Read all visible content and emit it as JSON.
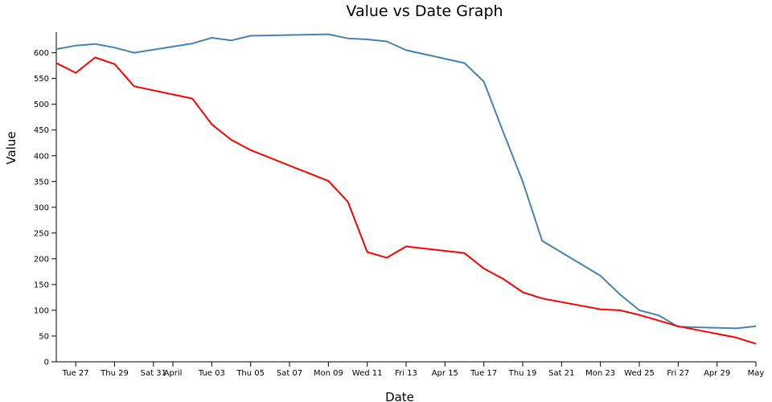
{
  "chart_data": {
    "type": "line",
    "title": "Value vs Date Graph",
    "xlabel": "Date",
    "ylabel": "Value",
    "xlim": [
      "2018-03-26",
      "2018-05-01"
    ],
    "ylim": [
      0,
      640
    ],
    "y_ticks": [
      0,
      50,
      100,
      150,
      200,
      250,
      300,
      350,
      400,
      450,
      500,
      550,
      600
    ],
    "x_ticks": [
      {
        "date": "2018-03-27",
        "label": "Tue 27"
      },
      {
        "date": "2018-03-29",
        "label": "Thu 29"
      },
      {
        "date": "2018-03-31",
        "label": "Sat 31"
      },
      {
        "date": "2018-04-01",
        "label": "April"
      },
      {
        "date": "2018-04-03",
        "label": "Tue 03"
      },
      {
        "date": "2018-04-05",
        "label": "Thu 05"
      },
      {
        "date": "2018-04-07",
        "label": "Sat 07"
      },
      {
        "date": "2018-04-09",
        "label": "Mon 09"
      },
      {
        "date": "2018-04-11",
        "label": "Wed 11"
      },
      {
        "date": "2018-04-13",
        "label": "Fri 13"
      },
      {
        "date": "2018-04-15",
        "label": "Apr 15"
      },
      {
        "date": "2018-04-17",
        "label": "Tue 17"
      },
      {
        "date": "2018-04-19",
        "label": "Thu 19"
      },
      {
        "date": "2018-04-21",
        "label": "Sat 21"
      },
      {
        "date": "2018-04-23",
        "label": "Mon 23"
      },
      {
        "date": "2018-04-25",
        "label": "Wed 25"
      },
      {
        "date": "2018-04-27",
        "label": "Fri 27"
      },
      {
        "date": "2018-04-29",
        "label": "Apr 29"
      },
      {
        "date": "2018-05-01",
        "label": "May"
      }
    ],
    "grid": false,
    "series": [
      {
        "color": "#4682b4",
        "points": [
          {
            "x": "2018-03-26",
            "y": 607
          },
          {
            "x": "2018-03-27",
            "y": 614
          },
          {
            "x": "2018-03-28",
            "y": 617
          },
          {
            "x": "2018-03-29",
            "y": 610
          },
          {
            "x": "2018-03-30",
            "y": 600
          },
          {
            "x": "2018-04-02",
            "y": 618
          },
          {
            "x": "2018-04-03",
            "y": 629
          },
          {
            "x": "2018-04-04",
            "y": 624
          },
          {
            "x": "2018-04-05",
            "y": 633
          },
          {
            "x": "2018-04-09",
            "y": 636
          },
          {
            "x": "2018-04-10",
            "y": 628
          },
          {
            "x": "2018-04-11",
            "y": 626
          },
          {
            "x": "2018-04-12",
            "y": 622
          },
          {
            "x": "2018-04-13",
            "y": 605
          },
          {
            "x": "2018-04-16",
            "y": 580
          },
          {
            "x": "2018-04-17",
            "y": 544
          },
          {
            "x": "2018-04-18",
            "y": 446
          },
          {
            "x": "2018-04-19",
            "y": 350
          },
          {
            "x": "2018-04-20",
            "y": 235
          },
          {
            "x": "2018-04-23",
            "y": 167
          },
          {
            "x": "2018-04-24",
            "y": 131
          },
          {
            "x": "2018-04-25",
            "y": 100
          },
          {
            "x": "2018-04-26",
            "y": 90
          },
          {
            "x": "2018-04-27",
            "y": 68
          },
          {
            "x": "2018-04-30",
            "y": 65
          },
          {
            "x": "2018-05-01",
            "y": 69
          }
        ]
      },
      {
        "color": "#ff0000",
        "points": [
          {
            "x": "2018-03-26",
            "y": 580
          },
          {
            "x": "2018-03-27",
            "y": 561
          },
          {
            "x": "2018-03-28",
            "y": 591
          },
          {
            "x": "2018-03-29",
            "y": 578
          },
          {
            "x": "2018-03-30",
            "y": 535
          },
          {
            "x": "2018-04-02",
            "y": 511
          },
          {
            "x": "2018-04-03",
            "y": 461
          },
          {
            "x": "2018-04-04",
            "y": 431
          },
          {
            "x": "2018-04-05",
            "y": 411
          },
          {
            "x": "2018-04-09",
            "y": 351
          },
          {
            "x": "2018-04-10",
            "y": 311
          },
          {
            "x": "2018-04-11",
            "y": 213
          },
          {
            "x": "2018-04-12",
            "y": 202
          },
          {
            "x": "2018-04-13",
            "y": 224
          },
          {
            "x": "2018-04-16",
            "y": 211
          },
          {
            "x": "2018-04-17",
            "y": 181
          },
          {
            "x": "2018-04-18",
            "y": 161
          },
          {
            "x": "2018-04-19",
            "y": 135
          },
          {
            "x": "2018-04-20",
            "y": 123
          },
          {
            "x": "2018-04-23",
            "y": 102
          },
          {
            "x": "2018-04-24",
            "y": 100
          },
          {
            "x": "2018-04-25",
            "y": 91
          },
          {
            "x": "2018-04-27",
            "y": 69
          },
          {
            "x": "2018-04-30",
            "y": 47
          },
          {
            "x": "2018-05-01",
            "y": 35
          }
        ]
      }
    ]
  }
}
